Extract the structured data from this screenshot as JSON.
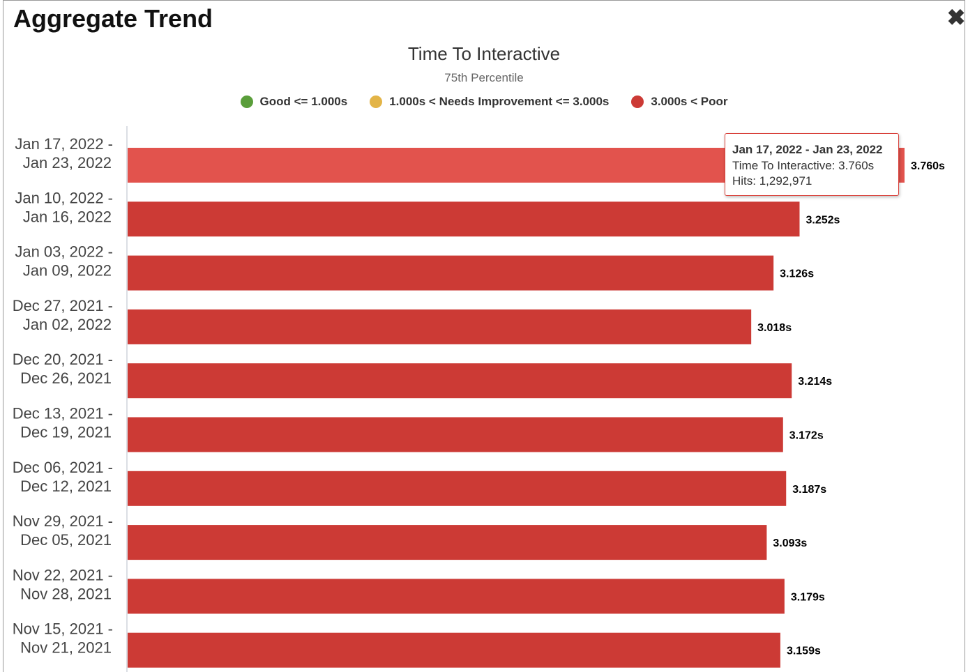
{
  "window": {
    "title": "Aggregate Trend",
    "close_icon": "close-icon"
  },
  "chart_data": {
    "type": "bar",
    "orientation": "horizontal",
    "title": "Time To Interactive",
    "subtitle": "75th Percentile",
    "legend": [
      {
        "name": "Good <= 1.000s",
        "color": "#5a9e3a"
      },
      {
        "name": "1.000s < Needs Improvement <= 3.000s",
        "color": "#e3b447"
      },
      {
        "name": "3.000s < Poor",
        "color": "#cc3a35"
      }
    ],
    "categories": [
      [
        "Jan 17, 2022 -",
        "Jan 23, 2022"
      ],
      [
        "Jan 10, 2022 -",
        "Jan 16, 2022"
      ],
      [
        "Jan 03, 2022 -",
        "Jan 09, 2022"
      ],
      [
        "Dec 27, 2021 -",
        "Jan 02, 2022"
      ],
      [
        "Dec 20, 2021 -",
        "Dec 26, 2021"
      ],
      [
        "Dec 13, 2021 -",
        "Dec 19, 2021"
      ],
      [
        "Dec 06, 2021 -",
        "Dec 12, 2021"
      ],
      [
        "Nov 29, 2021 -",
        "Dec 05, 2021"
      ],
      [
        "Nov 22, 2021 -",
        "Nov 28, 2021"
      ],
      [
        "Nov 15, 2021 -",
        "Nov 21, 2021"
      ]
    ],
    "values": [
      3.76,
      3.252,
      3.126,
      3.018,
      3.214,
      3.172,
      3.187,
      3.093,
      3.179,
      3.159
    ],
    "value_labels": [
      "3.760s",
      "3.252s",
      "3.126s",
      "3.018s",
      "3.214s",
      "3.172s",
      "3.187s",
      "3.093s",
      "3.179s",
      "3.159s"
    ],
    "unit": "s",
    "bar_color": "#cc3a35",
    "highlight_color": "#e2534d",
    "highlighted_index": 0,
    "xlim": [
      0,
      3.8
    ]
  },
  "tooltip": {
    "title": "Jan 17, 2022 - Jan 23, 2022",
    "line1": "Time To Interactive: 3.760s",
    "line2": "Hits: 1,292,971"
  }
}
